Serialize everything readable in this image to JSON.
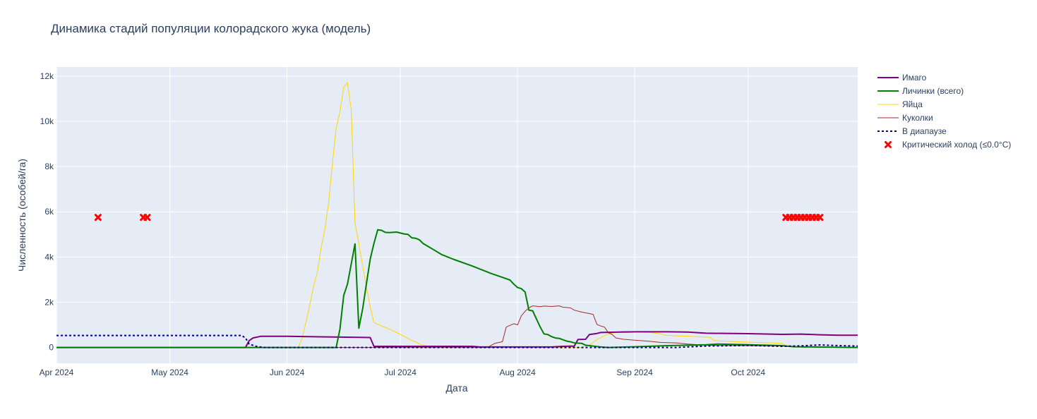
{
  "chart_data": {
    "type": "line",
    "title": "Динамика стадий популяции колорадского жука (модель)",
    "xlabel": "Дата",
    "ylabel": "Численность (особей/га)",
    "x_range": [
      "2024-04-01",
      "2024-10-30"
    ],
    "ylim": [
      -700,
      12400
    ],
    "x_ticks": [
      {
        "date": "2024-04-01",
        "label": "Apr 2024"
      },
      {
        "date": "2024-05-01",
        "label": "May 2024"
      },
      {
        "date": "2024-06-01",
        "label": "Jun 2024"
      },
      {
        "date": "2024-07-01",
        "label": "Jul 2024"
      },
      {
        "date": "2024-08-01",
        "label": "Aug 2024"
      },
      {
        "date": "2024-09-01",
        "label": "Sep 2024"
      },
      {
        "date": "2024-10-01",
        "label": "Oct 2024"
      }
    ],
    "y_ticks": [
      {
        "value": 0,
        "label": "0"
      },
      {
        "value": 2000,
        "label": "2k"
      },
      {
        "value": 4000,
        "label": "4k"
      },
      {
        "value": 6000,
        "label": "6k"
      },
      {
        "value": 8000,
        "label": "8k"
      },
      {
        "value": 10000,
        "label": "10k"
      },
      {
        "value": 12000,
        "label": "12k"
      }
    ],
    "grid": true,
    "legend_position": "top-right, outside plot",
    "series": [
      {
        "name": "Имаго",
        "color": "#800080",
        "line_style": "solid-thick",
        "points": [
          [
            "2024-04-01",
            0
          ],
          [
            "2024-05-21",
            0
          ],
          [
            "2024-05-22",
            300
          ],
          [
            "2024-05-23",
            420
          ],
          [
            "2024-05-25",
            490
          ],
          [
            "2024-06-01",
            490
          ],
          [
            "2024-06-10",
            470
          ],
          [
            "2024-06-20",
            445
          ],
          [
            "2024-06-23",
            440
          ],
          [
            "2024-06-24",
            50
          ],
          [
            "2024-07-20",
            50
          ],
          [
            "2024-07-22",
            20
          ],
          [
            "2024-08-10",
            20
          ],
          [
            "2024-08-13",
            50
          ],
          [
            "2024-08-16",
            60
          ],
          [
            "2024-08-17",
            350
          ],
          [
            "2024-08-19",
            360
          ],
          [
            "2024-08-20",
            570
          ],
          [
            "2024-08-22",
            620
          ],
          [
            "2024-08-23",
            660
          ],
          [
            "2024-08-28",
            680
          ],
          [
            "2024-09-01",
            690
          ],
          [
            "2024-09-10",
            690
          ],
          [
            "2024-09-15",
            680
          ],
          [
            "2024-09-20",
            630
          ],
          [
            "2024-10-01",
            610
          ],
          [
            "2024-10-10",
            580
          ],
          [
            "2024-10-15",
            590
          ],
          [
            "2024-10-20",
            560
          ],
          [
            "2024-10-25",
            540
          ],
          [
            "2024-10-30",
            540
          ]
        ]
      },
      {
        "name": "Личинки (всего)",
        "color": "#008000",
        "line_style": "solid-thick",
        "points": [
          [
            "2024-04-01",
            0
          ],
          [
            "2024-06-14",
            0
          ],
          [
            "2024-06-15",
            800
          ],
          [
            "2024-06-16",
            2300
          ],
          [
            "2024-06-17",
            2800
          ],
          [
            "2024-06-18",
            3700
          ],
          [
            "2024-06-19",
            4580
          ],
          [
            "2024-06-20",
            850
          ],
          [
            "2024-06-21",
            1700
          ],
          [
            "2024-06-22",
            2800
          ],
          [
            "2024-06-23",
            3900
          ],
          [
            "2024-06-24",
            4600
          ],
          [
            "2024-06-25",
            5200
          ],
          [
            "2024-06-26",
            5180
          ],
          [
            "2024-06-27",
            5090
          ],
          [
            "2024-06-28",
            5080
          ],
          [
            "2024-06-30",
            5100
          ],
          [
            "2024-07-02",
            5020
          ],
          [
            "2024-07-03",
            5000
          ],
          [
            "2024-07-04",
            4850
          ],
          [
            "2024-07-05",
            4830
          ],
          [
            "2024-07-06",
            4760
          ],
          [
            "2024-07-07",
            4600
          ],
          [
            "2024-07-10",
            4300
          ],
          [
            "2024-07-12",
            4100
          ],
          [
            "2024-07-15",
            3900
          ],
          [
            "2024-07-20",
            3600
          ],
          [
            "2024-07-25",
            3270
          ],
          [
            "2024-07-28",
            3100
          ],
          [
            "2024-07-30",
            2980
          ],
          [
            "2024-07-31",
            2800
          ],
          [
            "2024-08-01",
            2650
          ],
          [
            "2024-08-02",
            2600
          ],
          [
            "2024-08-03",
            2450
          ],
          [
            "2024-08-04",
            1650
          ],
          [
            "2024-08-05",
            1620
          ],
          [
            "2024-08-06",
            1260
          ],
          [
            "2024-08-07",
            900
          ],
          [
            "2024-08-08",
            600
          ],
          [
            "2024-08-09",
            570
          ],
          [
            "2024-08-10",
            480
          ],
          [
            "2024-08-11",
            420
          ],
          [
            "2024-08-12",
            400
          ],
          [
            "2024-08-14",
            280
          ],
          [
            "2024-08-15",
            250
          ],
          [
            "2024-08-16",
            200
          ],
          [
            "2024-08-18",
            180
          ],
          [
            "2024-08-19",
            100
          ],
          [
            "2024-08-21",
            60
          ],
          [
            "2024-08-23",
            20
          ],
          [
            "2024-08-25",
            0
          ],
          [
            "2024-09-01",
            30
          ],
          [
            "2024-09-10",
            80
          ],
          [
            "2024-09-20",
            120
          ],
          [
            "2024-09-23",
            150
          ],
          [
            "2024-10-01",
            120
          ],
          [
            "2024-10-10",
            80
          ],
          [
            "2024-10-13",
            30
          ],
          [
            "2024-10-30",
            0
          ]
        ]
      },
      {
        "name": "Яйца",
        "color": "#ffd700",
        "line_style": "solid-thin",
        "points": [
          [
            "2024-04-01",
            0
          ],
          [
            "2024-06-04",
            0
          ],
          [
            "2024-06-05",
            400
          ],
          [
            "2024-06-06",
            1100
          ],
          [
            "2024-06-07",
            1850
          ],
          [
            "2024-06-08",
            2700
          ],
          [
            "2024-06-09",
            3300
          ],
          [
            "2024-06-10",
            4400
          ],
          [
            "2024-06-11",
            5200
          ],
          [
            "2024-06-12",
            6400
          ],
          [
            "2024-06-13",
            8100
          ],
          [
            "2024-06-14",
            9700
          ],
          [
            "2024-06-15",
            10400
          ],
          [
            "2024-06-16",
            11500
          ],
          [
            "2024-06-17",
            11720
          ],
          [
            "2024-06-18",
            10500
          ],
          [
            "2024-06-19",
            5500
          ],
          [
            "2024-06-20",
            4600
          ],
          [
            "2024-06-21",
            3600
          ],
          [
            "2024-06-22",
            2700
          ],
          [
            "2024-06-23",
            1800
          ],
          [
            "2024-06-24",
            1100
          ],
          [
            "2024-06-26",
            950
          ],
          [
            "2024-06-28",
            820
          ],
          [
            "2024-07-01",
            580
          ],
          [
            "2024-07-03",
            400
          ],
          [
            "2024-07-04",
            300
          ],
          [
            "2024-07-05",
            260
          ],
          [
            "2024-07-06",
            150
          ],
          [
            "2024-07-08",
            60
          ],
          [
            "2024-07-10",
            20
          ],
          [
            "2024-07-15",
            0
          ],
          [
            "2024-08-18",
            0
          ],
          [
            "2024-08-20",
            100
          ],
          [
            "2024-08-22",
            350
          ],
          [
            "2024-08-25",
            600
          ],
          [
            "2024-08-29",
            720
          ],
          [
            "2024-09-01",
            700
          ],
          [
            "2024-09-05",
            660
          ],
          [
            "2024-09-08",
            600
          ],
          [
            "2024-09-09",
            540
          ],
          [
            "2024-09-15",
            490
          ],
          [
            "2024-09-21",
            450
          ],
          [
            "2024-09-22",
            300
          ],
          [
            "2024-09-28",
            250
          ],
          [
            "2024-10-05",
            210
          ],
          [
            "2024-10-10",
            180
          ],
          [
            "2024-10-11",
            80
          ],
          [
            "2024-10-14",
            40
          ],
          [
            "2024-10-30",
            0
          ]
        ]
      },
      {
        "name": "Куколки",
        "color": "#a52a2a",
        "line_style": "solid-thin",
        "points": [
          [
            "2024-04-01",
            0
          ],
          [
            "2024-07-24",
            0
          ],
          [
            "2024-07-26",
            180
          ],
          [
            "2024-07-28",
            250
          ],
          [
            "2024-07-29",
            900
          ],
          [
            "2024-07-31",
            1050
          ],
          [
            "2024-08-01",
            1000
          ],
          [
            "2024-08-02",
            1400
          ],
          [
            "2024-08-03",
            1600
          ],
          [
            "2024-08-04",
            1750
          ],
          [
            "2024-08-05",
            1840
          ],
          [
            "2024-08-07",
            1800
          ],
          [
            "2024-08-08",
            1830
          ],
          [
            "2024-08-10",
            1810
          ],
          [
            "2024-08-12",
            1840
          ],
          [
            "2024-08-13",
            1780
          ],
          [
            "2024-08-15",
            1750
          ],
          [
            "2024-08-16",
            1650
          ],
          [
            "2024-08-18",
            1560
          ],
          [
            "2024-08-20",
            1500
          ],
          [
            "2024-08-21",
            1460
          ],
          [
            "2024-08-22",
            1020
          ],
          [
            "2024-08-23",
            950
          ],
          [
            "2024-08-24",
            900
          ],
          [
            "2024-08-25",
            650
          ],
          [
            "2024-08-26",
            580
          ],
          [
            "2024-08-27",
            420
          ],
          [
            "2024-08-29",
            360
          ],
          [
            "2024-09-01",
            320
          ],
          [
            "2024-09-05",
            270
          ],
          [
            "2024-09-08",
            220
          ],
          [
            "2024-09-12",
            200
          ],
          [
            "2024-09-15",
            150
          ],
          [
            "2024-09-20",
            100
          ],
          [
            "2024-09-25",
            90
          ],
          [
            "2024-10-01",
            80
          ],
          [
            "2024-10-10",
            60
          ],
          [
            "2024-10-13",
            20
          ],
          [
            "2024-10-30",
            0
          ]
        ]
      },
      {
        "name": "В диапаузе",
        "color": "#00008b",
        "line_style": "dotted",
        "points": [
          [
            "2024-04-01",
            530
          ],
          [
            "2024-05-20",
            530
          ],
          [
            "2024-05-21",
            420
          ],
          [
            "2024-05-22",
            150
          ],
          [
            "2024-05-24",
            40
          ],
          [
            "2024-05-26",
            0
          ],
          [
            "2024-09-12",
            0
          ],
          [
            "2024-09-20",
            60
          ],
          [
            "2024-10-01",
            90
          ],
          [
            "2024-10-10",
            50
          ],
          [
            "2024-10-15",
            70
          ],
          [
            "2024-10-20",
            110
          ],
          [
            "2024-10-25",
            80
          ],
          [
            "2024-10-30",
            60
          ]
        ]
      },
      {
        "name": "Критический холод (≤0.0°C)",
        "color": "#ff0000",
        "line_style": "markers-x",
        "y_value": 5750,
        "dates": [
          "2024-04-12",
          "2024-04-24",
          "2024-04-25",
          "2024-10-11",
          "2024-10-12",
          "2024-10-13",
          "2024-10-14",
          "2024-10-15",
          "2024-10-16",
          "2024-10-17",
          "2024-10-18",
          "2024-10-19",
          "2024-10-20"
        ]
      }
    ]
  }
}
